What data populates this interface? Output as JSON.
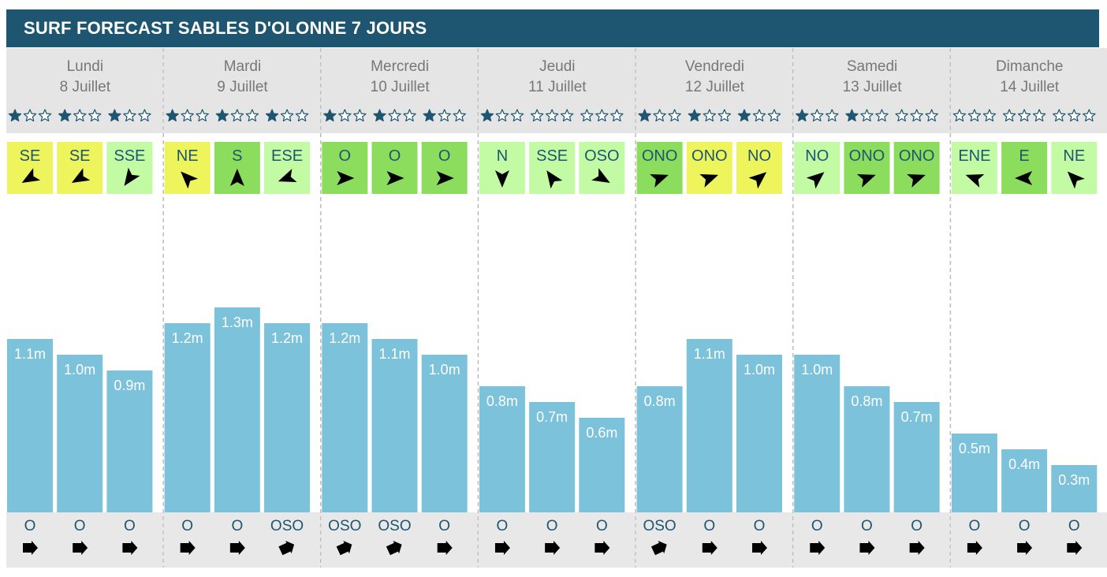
{
  "title": "SURF FORECAST SABLES D'OLONNE 7 JOURS",
  "colors": {
    "header_bg": "#1e5570",
    "day_header_bg": "#e5e5e5",
    "day_text": "#777777",
    "star": "#1e5570",
    "bar": "#7bc2da",
    "bar_label": "#ffffff",
    "wind_yellow": "#eef55c",
    "wind_green": "#8cdd5d",
    "wind_lightgreen": "#c3fba5",
    "wind_text": "#1e5570",
    "swell_bg": "#e8e8e8",
    "swell_text": "#1e5570",
    "divider": "#bbbbbb"
  },
  "chart_data": {
    "type": "bar",
    "title": "SURF FORECAST SABLES D'OLONNE 7 JOURS",
    "unit": "m",
    "ylim": [
      0,
      1.5
    ],
    "days": [
      {
        "name": "Lundi",
        "date": "8 Juillet",
        "slots": [
          {
            "stars": 1,
            "wind_dir": "SE",
            "wind_color": "yellow",
            "wind_arrow_deg": 150,
            "height": 1.1,
            "label": "1.1m",
            "swell_dir": "O",
            "swell_arrow_deg": 0
          },
          {
            "stars": 1,
            "wind_dir": "SE",
            "wind_color": "yellow",
            "wind_arrow_deg": 150,
            "height": 1.0,
            "label": "1.0m",
            "swell_dir": "O",
            "swell_arrow_deg": 0
          },
          {
            "stars": 1,
            "wind_dir": "SSE",
            "wind_color": "lightgreen",
            "wind_arrow_deg": 125,
            "height": 0.9,
            "label": "0.9m",
            "swell_dir": "O",
            "swell_arrow_deg": 0
          }
        ]
      },
      {
        "name": "Mardi",
        "date": "9 Juillet",
        "slots": [
          {
            "stars": 1,
            "wind_dir": "NE",
            "wind_color": "yellow",
            "wind_arrow_deg": -135,
            "height": 1.2,
            "label": "1.2m",
            "swell_dir": "O",
            "swell_arrow_deg": 0
          },
          {
            "stars": 1,
            "wind_dir": "S",
            "wind_color": "green",
            "wind_arrow_deg": -90,
            "height": 1.3,
            "label": "1.3m",
            "swell_dir": "O",
            "swell_arrow_deg": 0
          },
          {
            "stars": 1,
            "wind_dir": "ESE",
            "wind_color": "lightgreen",
            "wind_arrow_deg": 160,
            "height": 1.2,
            "label": "1.2m",
            "swell_dir": "OSO",
            "swell_arrow_deg": -25
          }
        ]
      },
      {
        "name": "Mercredi",
        "date": "10 Juillet",
        "slots": [
          {
            "stars": 1,
            "wind_dir": "O",
            "wind_color": "green",
            "wind_arrow_deg": 0,
            "height": 1.2,
            "label": "1.2m",
            "swell_dir": "OSO",
            "swell_arrow_deg": -25
          },
          {
            "stars": 1,
            "wind_dir": "O",
            "wind_color": "green",
            "wind_arrow_deg": 0,
            "height": 1.1,
            "label": "1.1m",
            "swell_dir": "OSO",
            "swell_arrow_deg": -25
          },
          {
            "stars": 1,
            "wind_dir": "O",
            "wind_color": "green",
            "wind_arrow_deg": 0,
            "height": 1.0,
            "label": "1.0m",
            "swell_dir": "O",
            "swell_arrow_deg": 0
          }
        ]
      },
      {
        "name": "Jeudi",
        "date": "11 Juillet",
        "slots": [
          {
            "stars": 1,
            "wind_dir": "N",
            "wind_color": "lightgreen",
            "wind_arrow_deg": 90,
            "height": 0.8,
            "label": "0.8m",
            "swell_dir": "O",
            "swell_arrow_deg": 0
          },
          {
            "stars": 0,
            "wind_dir": "SSE",
            "wind_color": "lightgreen",
            "wind_arrow_deg": -125,
            "height": 0.7,
            "label": "0.7m",
            "swell_dir": "O",
            "swell_arrow_deg": 0
          },
          {
            "stars": 0,
            "wind_dir": "OSO",
            "wind_color": "lightgreen",
            "wind_arrow_deg": 30,
            "height": 0.6,
            "label": "0.6m",
            "swell_dir": "O",
            "swell_arrow_deg": 0
          }
        ]
      },
      {
        "name": "Vendredi",
        "date": "12 Juillet",
        "slots": [
          {
            "stars": 1,
            "wind_dir": "ONO",
            "wind_color": "green",
            "wind_arrow_deg": -20,
            "height": 0.8,
            "label": "0.8m",
            "swell_dir": "OSO",
            "swell_arrow_deg": -25
          },
          {
            "stars": 1,
            "wind_dir": "ONO",
            "wind_color": "yellow",
            "wind_arrow_deg": -20,
            "height": 1.1,
            "label": "1.1m",
            "swell_dir": "O",
            "swell_arrow_deg": 0
          },
          {
            "stars": 1,
            "wind_dir": "NO",
            "wind_color": "yellow",
            "wind_arrow_deg": -40,
            "height": 1.0,
            "label": "1.0m",
            "swell_dir": "O",
            "swell_arrow_deg": 0
          }
        ]
      },
      {
        "name": "Samedi",
        "date": "13 Juillet",
        "slots": [
          {
            "stars": 1,
            "wind_dir": "NO",
            "wind_color": "lightgreen",
            "wind_arrow_deg": -40,
            "height": 1.0,
            "label": "1.0m",
            "swell_dir": "O",
            "swell_arrow_deg": 0
          },
          {
            "stars": 1,
            "wind_dir": "ONO",
            "wind_color": "green",
            "wind_arrow_deg": -20,
            "height": 0.8,
            "label": "0.8m",
            "swell_dir": "O",
            "swell_arrow_deg": 0
          },
          {
            "stars": 0,
            "wind_dir": "ONO",
            "wind_color": "green",
            "wind_arrow_deg": -20,
            "height": 0.7,
            "label": "0.7m",
            "swell_dir": "O",
            "swell_arrow_deg": 0
          }
        ]
      },
      {
        "name": "Dimanche",
        "date": "14 Juillet",
        "slots": [
          {
            "stars": 0,
            "wind_dir": "ENE",
            "wind_color": "lightgreen",
            "wind_arrow_deg": -160,
            "height": 0.5,
            "label": "0.5m",
            "swell_dir": "O",
            "swell_arrow_deg": 0
          },
          {
            "stars": 0,
            "wind_dir": "E",
            "wind_color": "green",
            "wind_arrow_deg": 180,
            "height": 0.4,
            "label": "0.4m",
            "swell_dir": "O",
            "swell_arrow_deg": 0
          },
          {
            "stars": 0,
            "wind_dir": "NE",
            "wind_color": "lightgreen",
            "wind_arrow_deg": -135,
            "height": 0.3,
            "label": "0.3m",
            "swell_dir": "O",
            "swell_arrow_deg": 0
          }
        ]
      }
    ]
  }
}
